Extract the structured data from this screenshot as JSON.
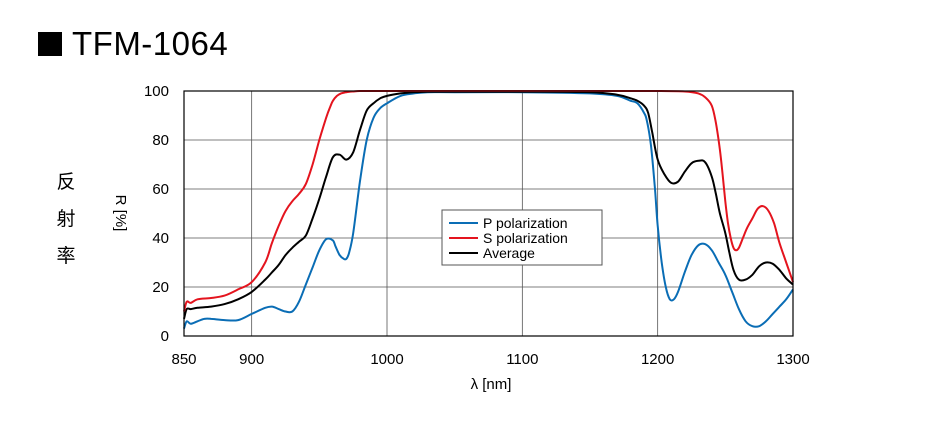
{
  "header": {
    "title": "TFM-1064",
    "title_marker": "black-square-icon"
  },
  "side_label": [
    "反",
    "射",
    "率"
  ],
  "chart_data": {
    "type": "line",
    "title": "",
    "xlabel": "λ [nm]",
    "ylabel": "R [%]",
    "xlim": [
      850,
      1300
    ],
    "ylim": [
      0,
      100
    ],
    "xticks": [
      850,
      900,
      1000,
      1100,
      1200,
      1300
    ],
    "yticks": [
      0,
      20,
      40,
      60,
      80,
      100
    ],
    "xtick_labels": [
      "850",
      "900",
      "1000",
      "1100",
      "1200",
      "1300"
    ],
    "ytick_labels": [
      "0",
      "20",
      "40",
      "60",
      "80",
      "100"
    ],
    "grid": true,
    "legend_position": "center-right",
    "series": [
      {
        "name": "P polarization",
        "color": "#0a6db5",
        "x": [
          850,
          852,
          855,
          860,
          865,
          870,
          880,
          890,
          900,
          910,
          915,
          920,
          925,
          930,
          935,
          940,
          945,
          950,
          955,
          960,
          962,
          965,
          968,
          970,
          972,
          975,
          980,
          985,
          990,
          995,
          1000,
          1010,
          1020,
          1030,
          1050,
          1100,
          1150,
          1170,
          1180,
          1185,
          1190,
          1192,
          1195,
          1198,
          1200,
          1203,
          1206,
          1209,
          1212,
          1215,
          1220,
          1225,
          1230,
          1235,
          1240,
          1245,
          1250,
          1255,
          1260,
          1265,
          1270,
          1275,
          1280,
          1285,
          1290,
          1295,
          1300
        ],
        "y": [
          3,
          6,
          5,
          6,
          7,
          7,
          6.5,
          6.5,
          9,
          11.5,
          12,
          11,
          10,
          10,
          14,
          21,
          28,
          35,
          39.5,
          39,
          36.5,
          33,
          31.5,
          31.5,
          34,
          42,
          63,
          80,
          89,
          93,
          95,
          98,
          99,
          99.5,
          99.5,
          99.5,
          99,
          98,
          96,
          95,
          91,
          88,
          78,
          60,
          45,
          30,
          20,
          15,
          15,
          18,
          26,
          33,
          37,
          37.5,
          35,
          30,
          25,
          18,
          11,
          6,
          4,
          4,
          6,
          9,
          12,
          15,
          19
        ]
      },
      {
        "name": "S polarization",
        "color": "#e4141e",
        "x": [
          850,
          852,
          855,
          860,
          870,
          880,
          890,
          900,
          910,
          915,
          920,
          925,
          930,
          935,
          940,
          945,
          950,
          955,
          958,
          960,
          963,
          966,
          970,
          975,
          980,
          990,
          1000,
          1050,
          1100,
          1150,
          1200,
          1220,
          1230,
          1235,
          1240,
          1243,
          1246,
          1248,
          1250,
          1252,
          1254,
          1256,
          1258,
          1260,
          1263,
          1266,
          1270,
          1274,
          1278,
          1282,
          1286,
          1290,
          1295,
          1300
        ],
        "y": [
          10,
          14,
          13.5,
          15,
          15.5,
          16.5,
          19,
          22,
          30,
          38,
          45,
          51,
          55,
          58,
          62,
          70,
          80,
          89,
          93.5,
          96,
          98,
          99,
          99.5,
          99.8,
          100,
          100,
          100,
          100,
          100,
          100,
          100,
          99.8,
          99,
          97.5,
          94,
          87,
          76,
          66,
          55,
          46,
          40,
          36,
          35,
          36,
          40,
          44,
          48,
          52,
          53,
          51,
          46,
          38,
          30,
          22
        ]
      },
      {
        "name": "Average",
        "color": "#000000",
        "x": [
          850,
          852,
          855,
          860,
          870,
          880,
          890,
          900,
          910,
          915,
          920,
          925,
          930,
          935,
          940,
          945,
          950,
          955,
          960,
          965,
          970,
          975,
          980,
          985,
          990,
          995,
          1000,
          1010,
          1020,
          1030,
          1050,
          1100,
          1150,
          1170,
          1180,
          1185,
          1190,
          1193,
          1196,
          1200,
          1205,
          1210,
          1215,
          1220,
          1225,
          1230,
          1235,
          1240,
          1243,
          1246,
          1250,
          1253,
          1256,
          1260,
          1265,
          1270,
          1275,
          1280,
          1285,
          1290,
          1295,
          1300
        ],
        "y": [
          7,
          11,
          11,
          11.5,
          12,
          13,
          15,
          18,
          23,
          26,
          29,
          33,
          36,
          38.5,
          41,
          48,
          56,
          65,
          73,
          74,
          72,
          75,
          84,
          92,
          95,
          97,
          98,
          99,
          99.5,
          99.7,
          99.7,
          99.7,
          99.5,
          98.5,
          97,
          96,
          94,
          91,
          83,
          72,
          66,
          62.5,
          63,
          67,
          70.5,
          71.5,
          71,
          65,
          58,
          50,
          42,
          34,
          27,
          23,
          23,
          25,
          28.5,
          30,
          29.5,
          27,
          23.5,
          21
        ]
      }
    ]
  }
}
